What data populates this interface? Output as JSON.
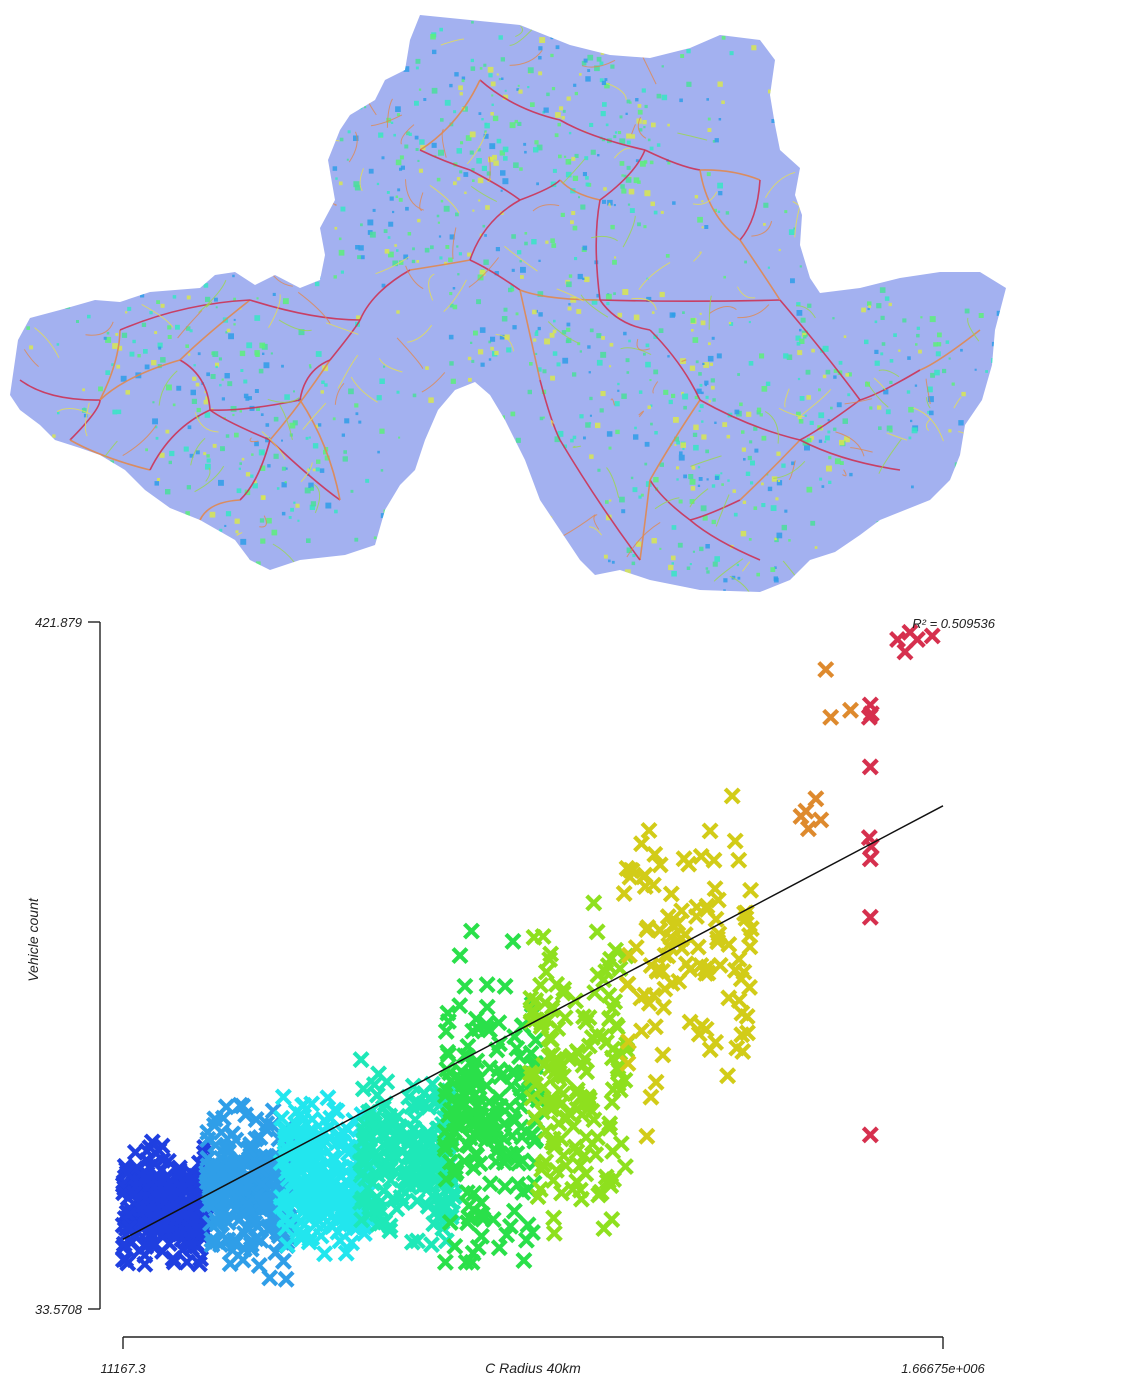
{
  "chart_data": {
    "type": "scatter",
    "title": "",
    "annotation": "R² = 0.509536",
    "xlabel": "C Radius 40km",
    "ylabel": "Vehicle count",
    "x_tick_labels": [
      "11167.3",
      "1.66675e+006"
    ],
    "y_tick_labels": [
      "33.5708",
      "421.879"
    ],
    "xlim": [
      11167.3,
      1666750
    ],
    "ylim": [
      33.5708,
      421.879
    ],
    "grid": false,
    "legend": "none",
    "marker": "x",
    "color_scale": [
      "#1f3fe0",
      "#2f9ee8",
      "#22e6ee",
      "#1ee8b8",
      "#2ae04a",
      "#8ee01e",
      "#d2cc18",
      "#de8a2e",
      "#d6304e"
    ],
    "trend_line": {
      "x": [
        11167.3,
        1666750
      ],
      "y": [
        73.0,
        318.0
      ]
    },
    "clusters": [
      {
        "color": "#1f3fe0",
        "x_range": [
          11167,
          180000
        ],
        "y_range": [
          38,
          128
        ],
        "y_center": 92,
        "count": 300
      },
      {
        "color": "#2f9ee8",
        "x_range": [
          180000,
          350000
        ],
        "y_range": [
          38,
          160
        ],
        "y_center": 100,
        "count": 280
      },
      {
        "color": "#22e6ee",
        "x_range": [
          330000,
          510000
        ],
        "y_range": [
          50,
          165
        ],
        "y_center": 108,
        "count": 280
      },
      {
        "color": "#1ee8b8",
        "x_range": [
          490000,
          680000
        ],
        "y_range": [
          55,
          205
        ],
        "y_center": 120,
        "count": 230
      },
      {
        "color": "#2ae04a",
        "x_range": [
          660000,
          850000
        ],
        "y_range": [
          60,
          290
        ],
        "y_center": 140,
        "count": 200
      },
      {
        "color": "#8ee01e",
        "x_range": [
          830000,
          1030000
        ],
        "y_range": [
          58,
          300
        ],
        "y_center": 170,
        "count": 170
      },
      {
        "color": "#d2cc18",
        "x_range": [
          1020000,
          1280000
        ],
        "y_range": [
          100,
          338
        ],
        "y_center": 230,
        "count": 110
      }
    ],
    "points": [
      {
        "x": 1380000,
        "y": 312,
        "color": "#de8a2e"
      },
      {
        "x": 1395000,
        "y": 305,
        "color": "#de8a2e"
      },
      {
        "x": 1420000,
        "y": 310,
        "color": "#de8a2e"
      },
      {
        "x": 1410000,
        "y": 322,
        "color": "#de8a2e"
      },
      {
        "x": 1430000,
        "y": 395,
        "color": "#de8a2e"
      },
      {
        "x": 1480000,
        "y": 372,
        "color": "#de8a2e"
      },
      {
        "x": 1440000,
        "y": 368,
        "color": "#de8a2e"
      },
      {
        "x": 1390000,
        "y": 315,
        "color": "#de8a2e"
      },
      {
        "x": 1575000,
        "y": 412,
        "color": "#d6304e"
      },
      {
        "x": 1600000,
        "y": 416,
        "color": "#d6304e"
      },
      {
        "x": 1615000,
        "y": 412,
        "color": "#d6304e"
      },
      {
        "x": 1590000,
        "y": 405,
        "color": "#d6304e"
      },
      {
        "x": 1645000,
        "y": 414,
        "color": "#d6304e"
      },
      {
        "x": 1520000,
        "y": 375,
        "color": "#d6304e"
      },
      {
        "x": 1522000,
        "y": 370,
        "color": "#d6304e"
      },
      {
        "x": 1518000,
        "y": 368,
        "color": "#d6304e"
      },
      {
        "x": 1520000,
        "y": 340,
        "color": "#d6304e"
      },
      {
        "x": 1518000,
        "y": 300,
        "color": "#d6304e"
      },
      {
        "x": 1522000,
        "y": 295,
        "color": "#d6304e"
      },
      {
        "x": 1520000,
        "y": 288,
        "color": "#d6304e"
      },
      {
        "x": 1520000,
        "y": 255,
        "color": "#d6304e"
      },
      {
        "x": 1520000,
        "y": 132,
        "color": "#d6304e"
      }
    ]
  },
  "map": {
    "land_color": "#a3b1f0",
    "road_colors": [
      "#cc3355",
      "#e08850",
      "#e6e050",
      "#9ad84a"
    ],
    "density_colors": [
      "#4adf9a",
      "#36e6c4",
      "#5cf07a",
      "#2f9ee8",
      "#d8e850"
    ]
  }
}
